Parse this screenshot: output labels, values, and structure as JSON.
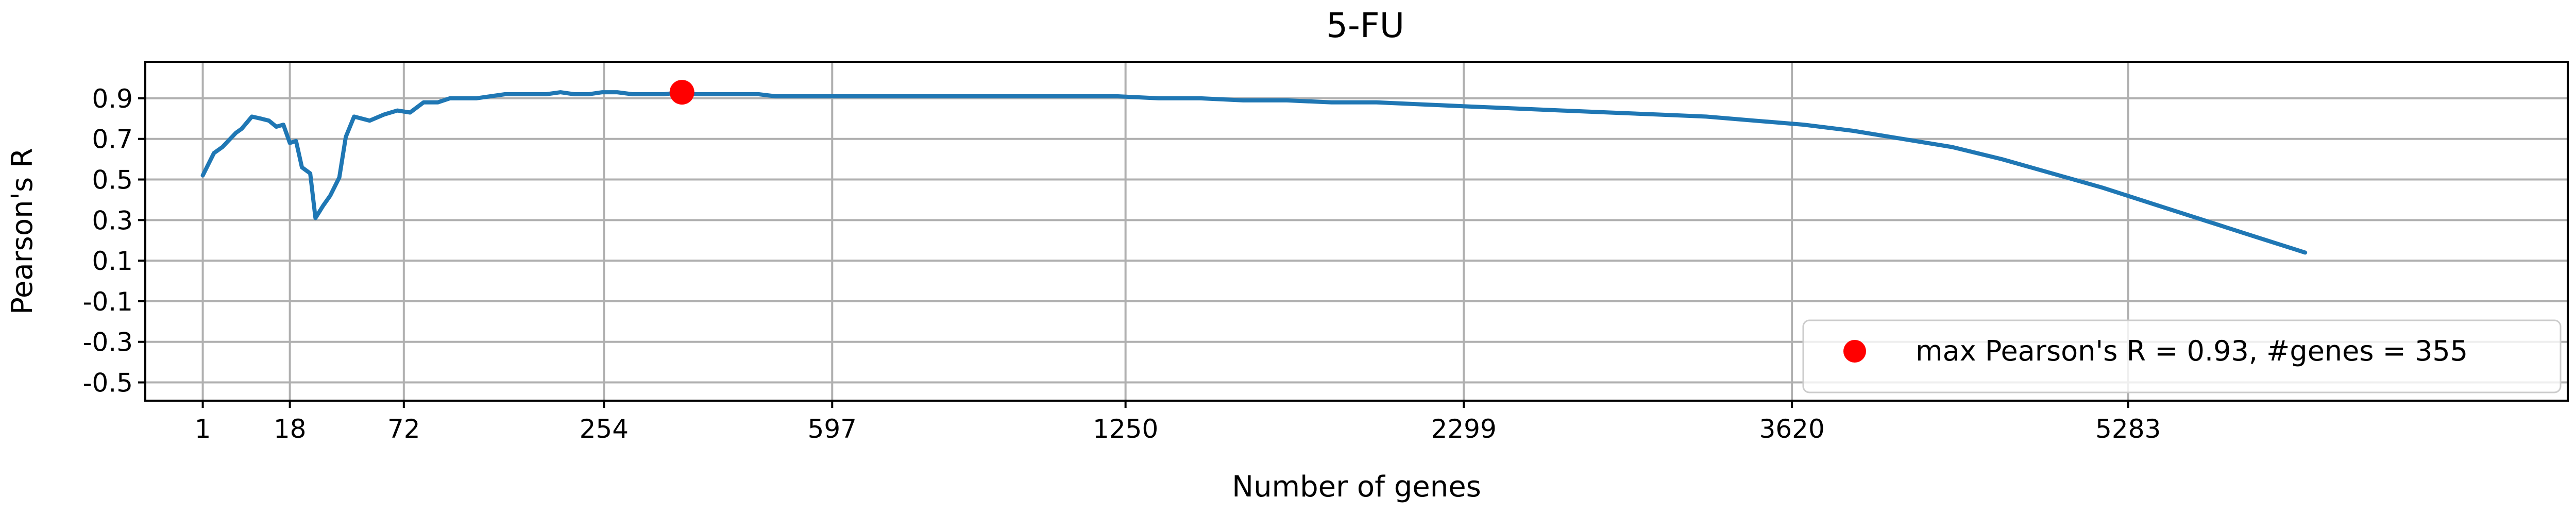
{
  "chart_data": {
    "type": "line",
    "title": "5-FU",
    "xlabel": "Number of genes",
    "ylabel": "Pearson's R",
    "x_ticks": [
      "1",
      "18",
      "72",
      "254",
      "597",
      "1250",
      "2299",
      "3620",
      "5283"
    ],
    "y_ticks": [
      "-0.5",
      "-0.3",
      "-0.1",
      "0.1",
      "0.3",
      "0.5",
      "0.7",
      "0.9"
    ],
    "ylim": [
      -0.59,
      1.08
    ],
    "x_scale": "sqrt",
    "xlim": [
      -1.3,
      7930
    ],
    "grid": true,
    "legend_position": "bottom-right",
    "series": [
      {
        "color": "#1f77b4",
        "x": [
          1,
          2,
          3,
          5,
          6,
          8,
          10,
          12,
          14,
          16,
          18,
          20,
          22,
          25,
          27,
          30,
          33,
          37,
          40,
          44,
          52,
          60,
          68,
          76,
          85,
          95,
          104,
          114,
          125,
          137,
          150,
          162,
          176,
          190,
          205,
          220,
          236,
          252,
          270,
          289,
          308,
          330,
          355,
          370,
          393,
          418,
          444,
          471,
          499,
          528,
          558,
          590,
          623,
          657,
          693,
          730,
          768,
          808,
          850,
          895,
          935,
          980,
          1027,
          1075,
          1125,
          1177,
          1230,
          1339,
          1455,
          1579,
          1711,
          1851,
          1998,
          2153,
          2316,
          2486,
          2664,
          2850,
          3044,
          3246,
          3456,
          3673,
          3899,
          4132,
          4373,
          4622,
          4879,
          5144,
          5417,
          5698,
          5987,
          6284
        ],
        "y": [
          0.52,
          0.63,
          0.66,
          0.73,
          0.75,
          0.81,
          0.8,
          0.79,
          0.76,
          0.77,
          0.68,
          0.69,
          0.56,
          0.53,
          0.31,
          0.37,
          0.42,
          0.51,
          0.71,
          0.81,
          0.79,
          0.82,
          0.84,
          0.83,
          0.88,
          0.88,
          0.9,
          0.9,
          0.9,
          0.91,
          0.92,
          0.92,
          0.92,
          0.92,
          0.93,
          0.92,
          0.92,
          0.93,
          0.93,
          0.92,
          0.92,
          0.92,
          0.93,
          0.92,
          0.92,
          0.92,
          0.92,
          0.92,
          0.91,
          0.91,
          0.91,
          0.91,
          0.91,
          0.91,
          0.91,
          0.91,
          0.91,
          0.91,
          0.91,
          0.91,
          0.91,
          0.91,
          0.91,
          0.91,
          0.91,
          0.91,
          0.91,
          0.9,
          0.9,
          0.89,
          0.89,
          0.88,
          0.88,
          0.87,
          0.86,
          0.85,
          0.84,
          0.83,
          0.82,
          0.81,
          0.79,
          0.77,
          0.74,
          0.7,
          0.66,
          0.6,
          0.53,
          0.46,
          0.38,
          0.3,
          0.22,
          0.14
        ]
      }
    ],
    "max_point": {
      "x": 355,
      "y": 0.93,
      "color": "#ff0000"
    },
    "legend": [
      {
        "label": "max Pearson's R = 0.93, #genes = 355",
        "color": "#ff0000"
      }
    ]
  }
}
